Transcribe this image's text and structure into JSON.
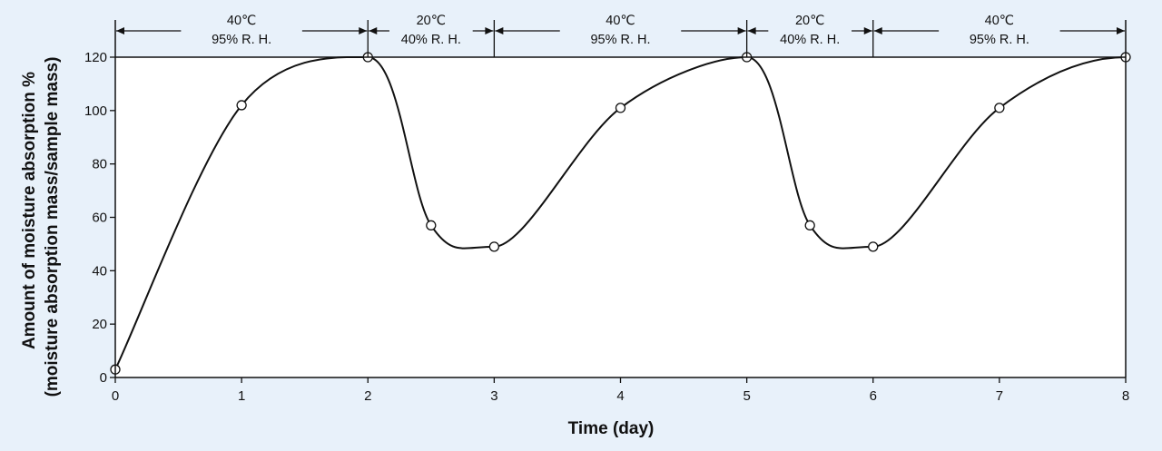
{
  "chart_data": {
    "type": "line",
    "xlabel": "Time  (day)",
    "ylabel_line1": "Amount of moisture absorption %",
    "ylabel_line2": "(moisture absorption mass/sample mass)",
    "xlim": [
      0,
      8
    ],
    "ylim": [
      0,
      120
    ],
    "x_ticks": [
      "0",
      "1",
      "2",
      "3",
      "4",
      "5",
      "6",
      "7",
      "8"
    ],
    "y_ticks": [
      "0",
      "20",
      "40",
      "60",
      "80",
      "100",
      "120"
    ],
    "grid": false,
    "legend": "none",
    "colors": {
      "line": "#111111",
      "marker_fill": "#ffffff",
      "background": "#e8f1fa",
      "plot_bg": "#ffffff"
    },
    "points": [
      {
        "x": 0,
        "y": 3
      },
      {
        "x": 1,
        "y": 102
      },
      {
        "x": 2,
        "y": 120
      },
      {
        "x": 2.5,
        "y": 57
      },
      {
        "x": 3,
        "y": 49
      },
      {
        "x": 4,
        "y": 101
      },
      {
        "x": 5,
        "y": 120
      },
      {
        "x": 5.5,
        "y": 57
      },
      {
        "x": 6,
        "y": 49
      },
      {
        "x": 7,
        "y": 101
      },
      {
        "x": 8,
        "y": 120
      }
    ],
    "conditions": [
      {
        "from": 0,
        "to": 2,
        "temp": "40℃",
        "rh": "95% R. H."
      },
      {
        "from": 2,
        "to": 3,
        "temp": "20℃",
        "rh": "40% R. H."
      },
      {
        "from": 3,
        "to": 5,
        "temp": "40℃",
        "rh": "95% R. H."
      },
      {
        "from": 5,
        "to": 6,
        "temp": "20℃",
        "rh": "40% R. H."
      },
      {
        "from": 6,
        "to": 8,
        "temp": "40℃",
        "rh": "95% R. H."
      }
    ]
  }
}
